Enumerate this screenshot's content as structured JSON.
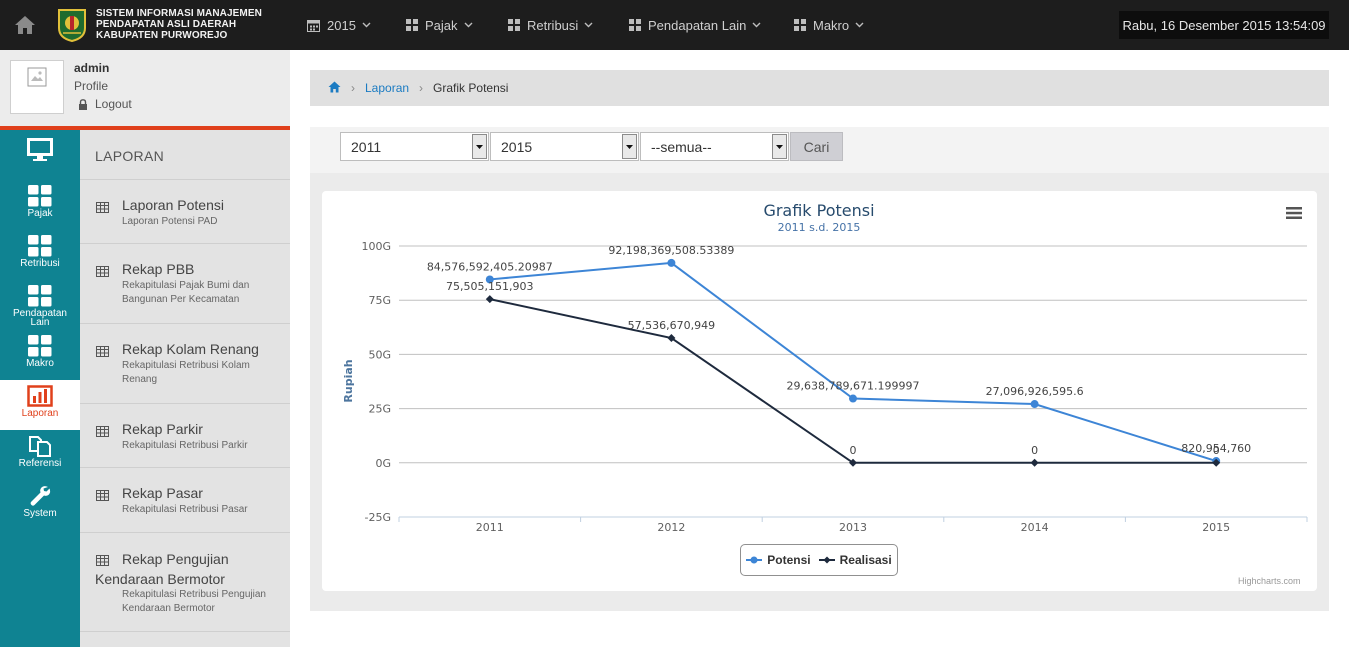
{
  "app": {
    "title_lines": [
      "SISTEM INFORMASI MANAJEMEN",
      "PENDAPATAN ASLI DAERAH",
      "KABUPATEN PURWOREJO"
    ],
    "datetime": "Rabu, 16 Desember 2015  13:54:09"
  },
  "nav": {
    "items": [
      {
        "label": "2015",
        "icon": "calendar-icon"
      },
      {
        "label": "Pajak",
        "icon": "grid-icon"
      },
      {
        "label": "Retribusi",
        "icon": "grid-icon"
      },
      {
        "label": "Pendapatan Lain",
        "icon": "grid-icon"
      },
      {
        "label": "Makro",
        "icon": "grid-icon"
      }
    ]
  },
  "user": {
    "name": "admin",
    "profile": "Profile",
    "logout": "Logout"
  },
  "rail": {
    "items": [
      {
        "label": "",
        "icon": "monitor-icon"
      },
      {
        "label": "Pajak",
        "icon": "grid-icon"
      },
      {
        "label": "Retribusi",
        "icon": "grid-icon"
      },
      {
        "label": "Pendapatan Lain",
        "icon": "grid-icon"
      },
      {
        "label": "Makro",
        "icon": "grid-icon"
      },
      {
        "label": "Laporan",
        "icon": "bar-chart-icon",
        "active": true
      },
      {
        "label": "Referensi",
        "icon": "copy-icon"
      },
      {
        "label": "System",
        "icon": "wrench-icon"
      }
    ]
  },
  "submenu": {
    "title": "LAPORAN",
    "items": [
      {
        "title": "Laporan Potensi",
        "desc": "Laporan Potensi PAD"
      },
      {
        "title": "Rekap PBB",
        "desc": "Rekapitulasi Pajak Bumi dan Bangunan Per Kecamatan"
      },
      {
        "title": "Rekap Kolam Renang",
        "desc": "Rekapitulasi Retribusi Kolam Renang"
      },
      {
        "title": "Rekap Parkir",
        "desc": "Rekapitulasi Retribusi Parkir"
      },
      {
        "title": "Rekap Pasar",
        "desc": "Rekapitulasi Retribusi Pasar"
      },
      {
        "title_line1": "Rekap Pengujian",
        "title_line2": "Kendaraan Bermotor",
        "desc": "Rekapitulasi Retribusi Pengujian Kendaraan Bermotor"
      }
    ]
  },
  "breadcrumb": {
    "laporan": "Laporan",
    "current": "Grafik Potensi"
  },
  "filter": {
    "year_from": "2011",
    "year_to": "2015",
    "category": "--semua--",
    "search_label": "Cari"
  },
  "chart_data": {
    "type": "line",
    "title": "Grafik Potensi",
    "subtitle": "2011 s.d. 2015",
    "ylabel": "Rupiah",
    "ylim": [
      -25000000000,
      100000000000
    ],
    "yticks": [
      -25000000000,
      0,
      25000000000,
      50000000000,
      75000000000,
      100000000000
    ],
    "ytick_labels": [
      "-25G",
      "0G",
      "25G",
      "50G",
      "75G",
      "100G"
    ],
    "categories": [
      "2011",
      "2012",
      "2013",
      "2014",
      "2015"
    ],
    "series": [
      {
        "name": "Potensi",
        "color": "#3d85d6",
        "values": [
          84576592405.20987,
          92198369508.53389,
          29638789671.199997,
          27096926595.6,
          820954760
        ],
        "labels": [
          "84,576,592,405.20987",
          "92,198,369,508.53389",
          "29,638,789,671.199997",
          "27,096,926,595.6",
          "820,954,760"
        ]
      },
      {
        "name": "Realisasi",
        "color": "#1e2a3d",
        "values": [
          75505151903,
          57536670949,
          0,
          0,
          0
        ],
        "labels": [
          "75,505,151,903",
          "57,536,670,949",
          "0",
          "0",
          "0"
        ]
      }
    ],
    "legend": "bottom-center",
    "grid": true,
    "credits": "Highcharts.com"
  }
}
